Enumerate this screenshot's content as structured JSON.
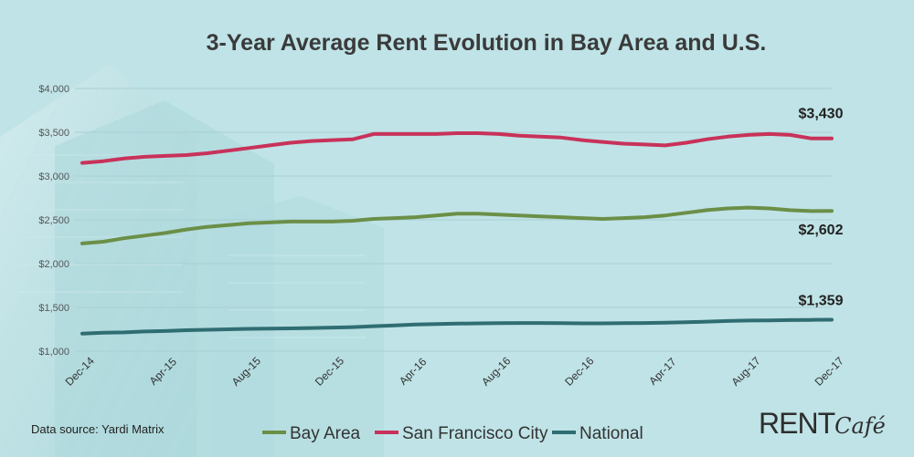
{
  "chart_data": {
    "type": "line",
    "title": "3-Year Average Rent Evolution in Bay Area and U.S.",
    "xlabel": "",
    "ylabel": "",
    "ylim": [
      1000,
      4000
    ],
    "yticks": [
      1000,
      1500,
      2000,
      2500,
      3000,
      3500,
      4000
    ],
    "ytick_labels": [
      "$1,000",
      "$1,500",
      "$2,000",
      "$2,500",
      "$3,000",
      "$3,500",
      "$4,000"
    ],
    "categories": [
      "Dec-14",
      "Jan-15",
      "Feb-15",
      "Mar-15",
      "Apr-15",
      "May-15",
      "Jun-15",
      "Jul-15",
      "Aug-15",
      "Sep-15",
      "Oct-15",
      "Nov-15",
      "Dec-15",
      "Jan-16",
      "Feb-16",
      "Mar-16",
      "Apr-16",
      "May-16",
      "Jun-16",
      "Jul-16",
      "Aug-16",
      "Sep-16",
      "Oct-16",
      "Nov-16",
      "Dec-16",
      "Jan-17",
      "Feb-17",
      "Mar-17",
      "Apr-17",
      "May-17",
      "Jun-17",
      "Jul-17",
      "Aug-17",
      "Sep-17",
      "Oct-17",
      "Nov-17",
      "Dec-17"
    ],
    "xtick_labels": [
      "Dec-14",
      "Apr-15",
      "Aug-15",
      "Dec-15",
      "Apr-16",
      "Aug-16",
      "Dec-16",
      "Apr-17",
      "Aug-17",
      "Dec-17"
    ],
    "series": [
      {
        "name": "Bay Area",
        "color": "#6b8f47",
        "values": [
          2230,
          2250,
          2290,
          2320,
          2350,
          2390,
          2420,
          2440,
          2460,
          2470,
          2480,
          2480,
          2480,
          2490,
          2510,
          2520,
          2530,
          2550,
          2570,
          2570,
          2560,
          2550,
          2540,
          2530,
          2520,
          2510,
          2520,
          2530,
          2550,
          2580,
          2610,
          2630,
          2640,
          2630,
          2610,
          2600,
          2602
        ]
      },
      {
        "name": "San Francisco City",
        "color": "#c8325a",
        "values": [
          3150,
          3170,
          3200,
          3220,
          3230,
          3240,
          3260,
          3290,
          3320,
          3350,
          3380,
          3400,
          3410,
          3420,
          3480,
          3480,
          3480,
          3480,
          3490,
          3490,
          3480,
          3460,
          3450,
          3440,
          3410,
          3390,
          3370,
          3360,
          3350,
          3380,
          3420,
          3450,
          3470,
          3480,
          3470,
          3430,
          3430
        ]
      },
      {
        "name": "National",
        "color": "#2f6d72",
        "values": [
          1200,
          1210,
          1215,
          1225,
          1230,
          1240,
          1245,
          1250,
          1255,
          1258,
          1260,
          1265,
          1270,
          1275,
          1285,
          1295,
          1305,
          1310,
          1315,
          1318,
          1320,
          1322,
          1322,
          1320,
          1318,
          1318,
          1320,
          1322,
          1325,
          1330,
          1338,
          1345,
          1350,
          1352,
          1355,
          1357,
          1359
        ]
      }
    ],
    "annotations": [
      {
        "series": "San Francisco City",
        "text": "$3,430"
      },
      {
        "series": "Bay Area",
        "text": "$2,602"
      },
      {
        "series": "National",
        "text": "$1,359"
      }
    ],
    "legend": {
      "placement": "bottom-center",
      "entries": [
        "Bay Area",
        "San Francisco City",
        "National"
      ]
    },
    "grid": true
  },
  "footer": {
    "source": "Data source:  Yardi Matrix",
    "brand_main": "RENT",
    "brand_script": "Café"
  }
}
